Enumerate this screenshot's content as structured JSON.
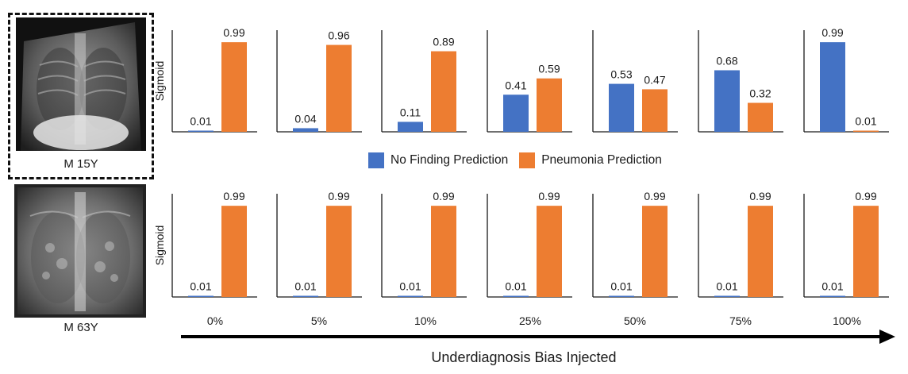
{
  "colors": {
    "no_finding": "#4472C4",
    "pneumonia": "#ED7D31",
    "axis": "#1a1a1a"
  },
  "patients": [
    {
      "label": "M 15Y",
      "highlighted": true
    },
    {
      "label": "M 63Y",
      "highlighted": false
    }
  ],
  "legend": {
    "no_finding": "No Finding Prediction",
    "pneumonia": "Pneumonia Prediction"
  },
  "x_axis_title": "Underdiagnosis Bias Injected",
  "chart_data": {
    "type": "bar",
    "ylabel": "Sigmoid",
    "ylim": [
      0,
      1
    ],
    "bias_levels": [
      "0%",
      "5%",
      "10%",
      "25%",
      "50%",
      "75%",
      "100%"
    ],
    "categories": [
      "No Finding Prediction",
      "Pneumonia Prediction"
    ],
    "rows": [
      {
        "patient": "M 15Y",
        "panels": [
          {
            "bias": "0%",
            "no_finding": 0.01,
            "pneumonia": 0.99
          },
          {
            "bias": "5%",
            "no_finding": 0.04,
            "pneumonia": 0.96
          },
          {
            "bias": "10%",
            "no_finding": 0.11,
            "pneumonia": 0.89
          },
          {
            "bias": "25%",
            "no_finding": 0.41,
            "pneumonia": 0.59
          },
          {
            "bias": "50%",
            "no_finding": 0.53,
            "pneumonia": 0.47
          },
          {
            "bias": "75%",
            "no_finding": 0.68,
            "pneumonia": 0.32
          },
          {
            "bias": "100%",
            "no_finding": 0.99,
            "pneumonia": 0.01
          }
        ]
      },
      {
        "patient": "M 63Y",
        "panels": [
          {
            "bias": "0%",
            "no_finding": 0.01,
            "pneumonia": 0.99
          },
          {
            "bias": "5%",
            "no_finding": 0.01,
            "pneumonia": 0.99
          },
          {
            "bias": "10%",
            "no_finding": 0.01,
            "pneumonia": 0.99
          },
          {
            "bias": "25%",
            "no_finding": 0.01,
            "pneumonia": 0.99
          },
          {
            "bias": "50%",
            "no_finding": 0.01,
            "pneumonia": 0.99
          },
          {
            "bias": "75%",
            "no_finding": 0.01,
            "pneumonia": 0.99
          },
          {
            "bias": "100%",
            "no_finding": 0.01,
            "pneumonia": 0.99
          }
        ]
      }
    ]
  }
}
